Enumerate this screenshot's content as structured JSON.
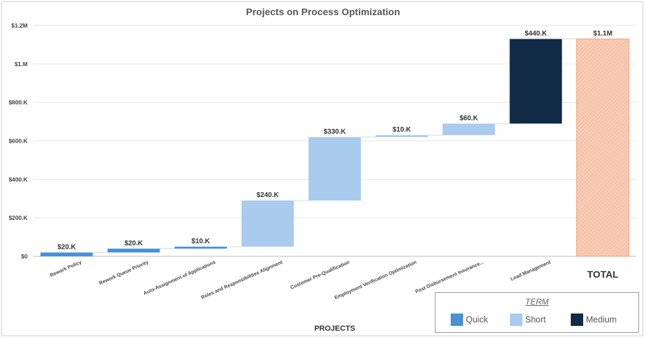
{
  "chart_data": {
    "type": "waterfall",
    "title": "Projects on Process Optimization",
    "xlabel": "PROJECTS",
    "ylabel": "",
    "ylim": [
      0,
      1200000
    ],
    "yticks": [
      0,
      200000,
      400000,
      600000,
      800000,
      1000000,
      1200000
    ],
    "ytick_labels": [
      "$0",
      "$200.K",
      "$400.K",
      "$600.K",
      "$800.K",
      "$1.M",
      "$1.2M"
    ],
    "grid": true,
    "legend_position": "bottom-right",
    "categories": [
      "Rework Policy",
      "Rework Queue Priority",
      "Auto-Assignment of Applications",
      "Roles and Responsibilities Alignment",
      "Customer Pre-Qualification",
      "Employment Verification Optimization",
      "Post Disbursement Insurance...",
      "Lead Management"
    ],
    "values": [
      20000,
      20000,
      10000,
      240000,
      330000,
      10000,
      60000,
      440000
    ],
    "data_labels": [
      "$20.K",
      "$20.K",
      "$10.K",
      "$240.K",
      "$330.K",
      "$10.K",
      "$60.K",
      "$440.K"
    ],
    "terms": [
      "Quick",
      "Quick",
      "Quick",
      "Short",
      "Short",
      "Short",
      "Short",
      "Medium"
    ],
    "total": {
      "label": "TOTAL",
      "value": 1130000,
      "data_label": "$1.1M",
      "color": "#f6c4aa"
    },
    "legend": {
      "title": "TERM",
      "items": [
        {
          "name": "Quick",
          "color": "#4a90d9"
        },
        {
          "name": "Short",
          "color": "#a9cbee"
        },
        {
          "name": "Medium",
          "color": "#112b47"
        }
      ]
    }
  }
}
